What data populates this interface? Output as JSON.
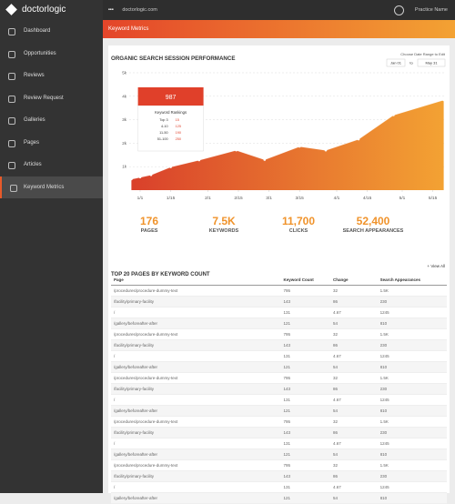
{
  "sidebar": {
    "logo": "doctorlogic",
    "menu": [
      "Dashboard",
      "Opportunities",
      "Reviews",
      "Review Request",
      "Galleries",
      "Pages",
      "Articles",
      "Keyword Metrics"
    ],
    "active": 7
  },
  "topbar": {
    "site": "doctorlogic.com",
    "user": "Practice Name"
  },
  "banner": {
    "title": "Keyword Metrics"
  },
  "chart": {
    "type": "area",
    "title": "ORGANIC SEARCH SESSION PERFORMANCE",
    "date_range_label": "Choose Date Range to Edit",
    "date_from": "Jan 01",
    "date_to_word": "to",
    "date_to": "May 31",
    "x": [
      -3,
      1,
      6,
      15,
      28,
      45,
      58,
      74,
      86,
      101,
      117,
      140
    ],
    "values": [
      470,
      550,
      650,
      987,
      1280,
      1700,
      1300,
      1860,
      1700,
      2170,
      3200,
      3840
    ],
    "xlim": [
      -4,
      141
    ],
    "xticks": [
      {
        "value": 1,
        "label": "1/1"
      },
      {
        "value": 15,
        "label": "1/15"
      },
      {
        "value": 32,
        "label": "2/1"
      },
      {
        "value": 46,
        "label": "2/15"
      },
      {
        "value": 60,
        "label": "3/1"
      },
      {
        "value": 74,
        "label": "3/15"
      },
      {
        "value": 91,
        "label": "4/1"
      },
      {
        "value": 105,
        "label": "4/15"
      },
      {
        "value": 121,
        "label": "5/1"
      },
      {
        "value": 135,
        "label": "5/15"
      }
    ],
    "ylim": [
      0,
      5000
    ],
    "yticks": [
      {
        "value": 1000,
        "label": "1k"
      },
      {
        "value": 2000,
        "label": "2k"
      },
      {
        "value": 3000,
        "label": "3k"
      },
      {
        "value": 4000,
        "label": "4k"
      },
      {
        "value": 5000,
        "label": "5k"
      }
    ],
    "grid": true,
    "color_start": "#d9402b",
    "color_end": "#f3a233",
    "tooltip": {
      "point": 3,
      "value_label": "987",
      "title": "Keyword Rankings",
      "rows": [
        [
          "Top 3",
          "15"
        ],
        [
          "4-10",
          "125"
        ],
        [
          "11-50",
          "190"
        ],
        [
          "51-100",
          "250"
        ]
      ]
    }
  },
  "stats": [
    {
      "value": "176",
      "label": "PAGES"
    },
    {
      "value": "7.5K",
      "label": "KEYWORDS"
    },
    {
      "value": "11,700",
      "label": "CLICKS"
    },
    {
      "value": "52,400",
      "label": "SEARCH APPEARANCES"
    }
  ],
  "table": {
    "title": "TOP 20 PAGES BY KEYWORD COUNT",
    "view_all": "View All",
    "headers": [
      "Page",
      "Keyword Count",
      "Change",
      "Search Appearances"
    ],
    "rows": [
      [
        "/procedures/procedure-dummy-text",
        "795",
        "32",
        "1.5K"
      ],
      [
        "/facility/primary-facility",
        "143",
        "86",
        "230"
      ],
      [
        "/",
        "131",
        "4.67",
        "1245"
      ],
      [
        "/gallery/beforeafter-after",
        "121",
        "54",
        "810"
      ],
      [
        "/procedures/procedure-dummy-text",
        "795",
        "32",
        "1.5K"
      ],
      [
        "/facility/primary-facility",
        "143",
        "86",
        "230"
      ],
      [
        "/",
        "131",
        "4.67",
        "1245"
      ],
      [
        "/gallery/beforeafter-after",
        "121",
        "54",
        "810"
      ],
      [
        "/procedures/procedure-dummy-text",
        "795",
        "32",
        "1.5K"
      ],
      [
        "/facility/primary-facility",
        "143",
        "86",
        "230"
      ],
      [
        "/",
        "131",
        "4.67",
        "1245"
      ],
      [
        "/gallery/beforeafter-after",
        "121",
        "54",
        "810"
      ],
      [
        "/procedures/procedure-dummy-text",
        "795",
        "32",
        "1.5K"
      ],
      [
        "/facility/primary-facility",
        "143",
        "86",
        "230"
      ],
      [
        "/",
        "131",
        "4.67",
        "1245"
      ],
      [
        "/gallery/beforeafter-after",
        "121",
        "54",
        "810"
      ],
      [
        "/procedures/procedure-dummy-text",
        "795",
        "32",
        "1.5K"
      ],
      [
        "/facility/primary-facility",
        "143",
        "86",
        "230"
      ],
      [
        "/",
        "131",
        "4.67",
        "1245"
      ],
      [
        "/gallery/beforeafter-after",
        "121",
        "54",
        "810"
      ]
    ]
  }
}
